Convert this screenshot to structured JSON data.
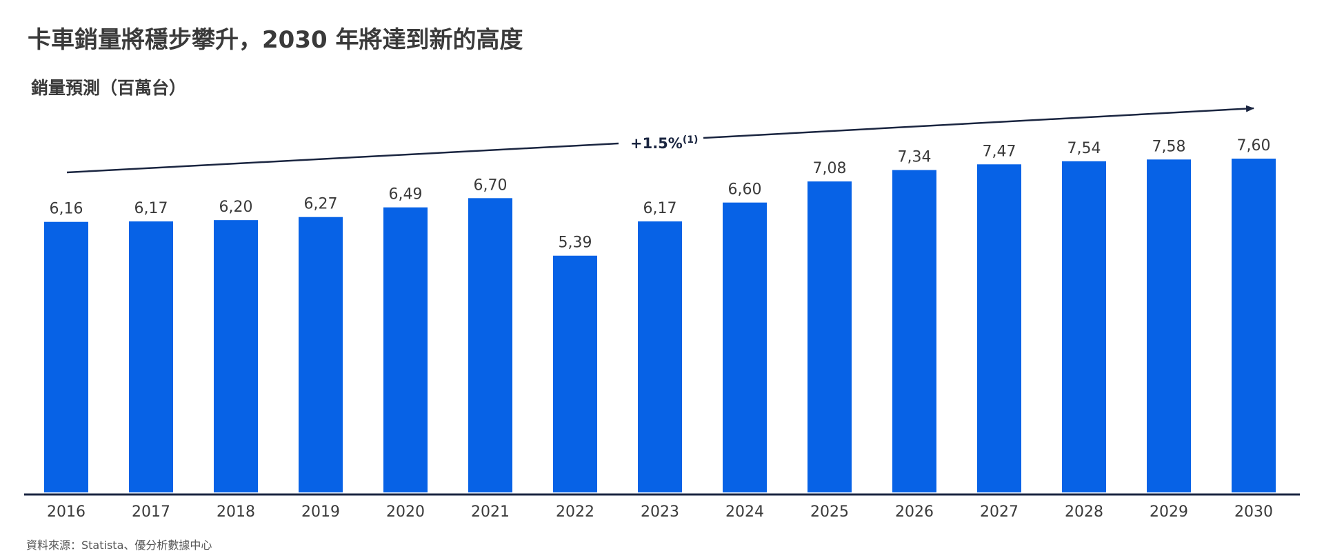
{
  "title": "卡車銷量將穩步攀升，2030 年將達到新的高度",
  "subtitle": "銷量預測（百萬台）",
  "source": "資料來源：Statista、優分析數據中心",
  "colors": {
    "bar": "#0762e6",
    "axis": "#1a2540",
    "trend_line": "#1a2540"
  },
  "chart_data": {
    "type": "bar",
    "categories": [
      "2016",
      "2017",
      "2018",
      "2019",
      "2020",
      "2021",
      "2022",
      "2023",
      "2024",
      "2025",
      "2026",
      "2027",
      "2028",
      "2029",
      "2030"
    ],
    "values": [
      6.16,
      6.17,
      6.2,
      6.27,
      6.49,
      6.7,
      5.39,
      6.17,
      6.6,
      7.08,
      7.34,
      7.47,
      7.54,
      7.58,
      7.6
    ],
    "value_labels": [
      "6,16",
      "6,17",
      "6,20",
      "6,27",
      "6,49",
      "6,70",
      "5,39",
      "6,17",
      "6,60",
      "7,08",
      "7,34",
      "7,47",
      "7,54",
      "7,58",
      "7,60"
    ],
    "ylim": [
      0,
      7.6
    ],
    "grid": false,
    "annotation": {
      "text": "+1.5%",
      "superscript": "(1)"
    }
  }
}
